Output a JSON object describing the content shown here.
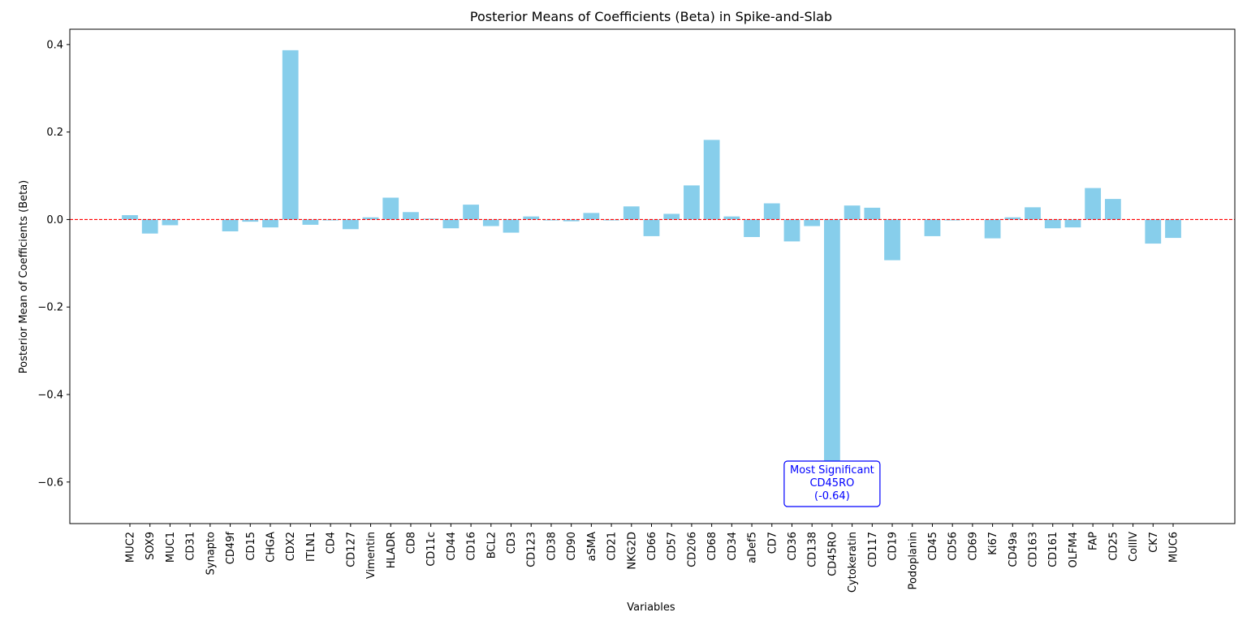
{
  "chart_data": {
    "type": "bar",
    "title": "Posterior Means of Coefficients (Beta) in Spike-and-Slab",
    "xlabel": "Variables",
    "ylabel": "Posterior Mean of Coefficients (Beta)",
    "ylim": [
      -0.695,
      0.435
    ],
    "yticks": [
      0.4,
      0.2,
      0.0,
      -0.2,
      -0.4,
      -0.6
    ],
    "ytick_labels": [
      "0.4",
      "0.2",
      "0.0",
      "−0.2",
      "−0.4",
      "−0.6"
    ],
    "categories": [
      "MUC2",
      "SOX9",
      "MUC1",
      "CD31",
      "Synapto",
      "CD49f",
      "CD15",
      "CHGA",
      "CDX2",
      "ITLN1",
      "CD4",
      "CD127",
      "Vimentin",
      "HLADR",
      "CD8",
      "CD11c",
      "CD44",
      "CD16",
      "BCL2",
      "CD3",
      "CD123",
      "CD38",
      "CD90",
      "aSMA",
      "CD21",
      "NKG2D",
      "CD66",
      "CD57",
      "CD206",
      "CD68",
      "CD34",
      "aDef5",
      "CD7",
      "CD36",
      "CD138",
      "CD45RO",
      "Cytokeratin",
      "CD117",
      "CD19",
      "Podoplanin",
      "CD45",
      "CD56",
      "CD69",
      "Ki67",
      "CD49a",
      "CD163",
      "CD161",
      "OLFM4",
      "FAP",
      "CD25",
      "CollIV",
      "CK7",
      "MUC6"
    ],
    "values": [
      0.01,
      -0.032,
      -0.013,
      0.0,
      0.0,
      -0.027,
      -0.005,
      -0.018,
      0.387,
      -0.012,
      -0.002,
      -0.022,
      0.005,
      0.05,
      0.017,
      0.002,
      -0.02,
      0.034,
      -0.015,
      -0.03,
      0.007,
      -0.002,
      -0.004,
      0.015,
      -0.002,
      0.03,
      -0.038,
      0.013,
      0.078,
      0.182,
      0.007,
      -0.04,
      0.037,
      -0.05,
      -0.015,
      -0.64,
      0.032,
      0.027,
      -0.093,
      0.0,
      -0.038,
      -0.002,
      0.0,
      -0.043,
      0.005,
      0.028,
      -0.02,
      -0.018,
      0.072,
      0.047,
      0.0,
      -0.055,
      -0.042
    ],
    "bar_color": "#87CEEB",
    "reference_line": {
      "y": 0.0,
      "color": "#ff0000",
      "style": "dashed"
    },
    "annotation": {
      "lines": [
        "Most Significant",
        "CD45RO",
        "(-0.64)"
      ],
      "target": "CD45RO",
      "color": "#0000ff"
    },
    "grid": false,
    "legend": "none"
  }
}
